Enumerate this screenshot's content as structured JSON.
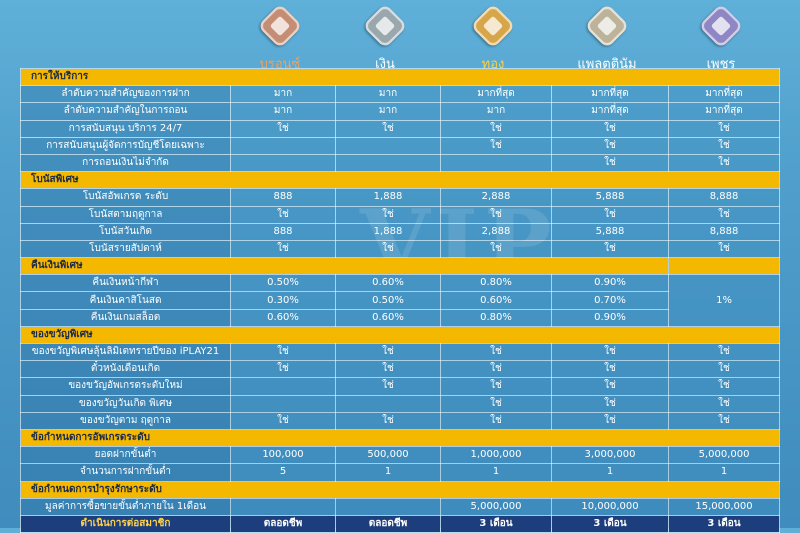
{
  "tiers": [
    {
      "name": "บรอนซ์",
      "color": "#f2a25c",
      "medal": "#c58e74",
      "icon": "bronze-medal-icon"
    },
    {
      "name": "เงิน",
      "color": "#ffffff",
      "medal": "#9aa8ae",
      "icon": "silver-medal-icon"
    },
    {
      "name": "ทอง",
      "color": "#ffd23a",
      "medal": "#d8a64a",
      "icon": "gold-medal-icon"
    },
    {
      "name": "แพลตตินัม",
      "color": "#ffffff",
      "medal": "#bdb39a",
      "icon": "platinum-medal-icon"
    },
    {
      "name": "เพชร",
      "color": "#ffffff",
      "medal": "#8f86c4",
      "icon": "diamond-medal-icon"
    }
  ],
  "watermark": "VIP",
  "sections": [
    {
      "title": "การให้บริการ",
      "rows": [
        {
          "label": "ลำดับความสำคัญของการฝาก",
          "values": [
            "มาก",
            "มาก",
            "มากที่สุด",
            "มากที่สุด",
            "มากที่สุด"
          ]
        },
        {
          "label": "ลำดับความสำคัญในการถอน",
          "values": [
            "มาก",
            "มาก",
            "มาก",
            "มากที่สุด",
            "มากที่สุด"
          ]
        },
        {
          "label": "การสนับสนุน บริการ 24/7",
          "values": [
            "ใช่",
            "ใช่",
            "ใช่",
            "ใช่",
            "ใช่"
          ]
        },
        {
          "label": "การสนับสนุนผู้จัดการบัญชีโดยเฉพาะ",
          "values": [
            "",
            "",
            "ใช่",
            "ใช่",
            "ใช่"
          ]
        },
        {
          "label": "การถอนเงินไม่จำกัด",
          "values": [
            "",
            "",
            "",
            "ใช่",
            "ใช่"
          ]
        }
      ]
    },
    {
      "title": "โบนัสพิเศษ",
      "rows": [
        {
          "label": "โบนัสอัพเกรด ระดับ",
          "values": [
            "888",
            "1,888",
            "2,888",
            "5,888",
            "8,888"
          ]
        },
        {
          "label": "โบนัสตามฤดูกาล",
          "values": [
            "ใช่",
            "ใช่",
            "ใช่",
            "ใช่",
            "ใช่"
          ]
        },
        {
          "label": "โบนัสวันเกิด",
          "values": [
            "888",
            "1,888",
            "2,888",
            "5,888",
            "8,888"
          ]
        },
        {
          "label": "โบนัสรายสัปดาห์",
          "values": [
            "ใช่",
            "ใช่",
            "ใช่",
            "ใช่",
            "ใช่"
          ]
        }
      ]
    },
    {
      "title": "คืนเงินพิเศษ",
      "rows": [
        {
          "label": "คืนเงินหน้ากีฬา",
          "values": [
            "0.50%",
            "0.60%",
            "0.80%",
            "0.90%"
          ]
        },
        {
          "label": "คืนเงินคาสิโนสด",
          "values": [
            "0.30%",
            "0.50%",
            "0.60%",
            "0.70%"
          ]
        },
        {
          "label": "คืนเงินเกมสล็อต",
          "values": [
            "0.60%",
            "0.60%",
            "0.80%",
            "0.90%"
          ]
        }
      ],
      "merged": "1%"
    },
    {
      "title": "ของขวัญพิเศษ",
      "rows": [
        {
          "label": "ของขวัญพิเศษลุ้นลิมิเตทรายปีของ iPLAY21",
          "values": [
            "ใช่",
            "ใช่",
            "ใช่",
            "ใช่",
            "ใช่"
          ]
        },
        {
          "label": "ตั๋วหนังเดือนเกิด",
          "values": [
            "ใช่",
            "ใช่",
            "ใช่",
            "ใช่",
            "ใช่"
          ]
        },
        {
          "label": "ของขวัญอัพเกรดระดับใหม่",
          "values": [
            "",
            "ใช่",
            "ใช่",
            "ใช่",
            "ใช่"
          ]
        },
        {
          "label": "ของขวัญวันเกิด พิเศษ",
          "values": [
            "",
            "",
            "ใช่",
            "ใช่",
            "ใช่"
          ]
        },
        {
          "label": "ของขวัญตาม ฤดูกาล",
          "values": [
            "ใช่",
            "ใช่",
            "ใช่",
            "ใช่",
            "ใช่"
          ]
        }
      ]
    },
    {
      "title": "ข้อกำหนดการอัพเกรดระดับ",
      "rows": [
        {
          "label": "ยอดฝากขั้นต่ำ",
          "values": [
            "100,000",
            "500,000",
            "1,000,000",
            "3,000,000",
            "5,000,000"
          ]
        },
        {
          "label": "จำนวนการฝากขั้นต่ำ",
          "values": [
            "5",
            "1",
            "1",
            "1",
            "1"
          ]
        }
      ]
    },
    {
      "title": "ข้อกำหนดการบำรุงรักษาระดับ",
      "rows": [
        {
          "label": "มูลค่าการซื้อขายขั้นต่ำภายใน 1เดือน",
          "values": [
            "",
            "",
            "5,000,000",
            "10,000,000",
            "15,000,000"
          ]
        }
      ]
    }
  ],
  "footer": {
    "label": "ดำเนินการต่อสมาชิก",
    "values": [
      "ตลอดชีพ",
      "ตลอดชีพ",
      "3 เดือน",
      "3 เดือน",
      "3 เดือน"
    ]
  }
}
